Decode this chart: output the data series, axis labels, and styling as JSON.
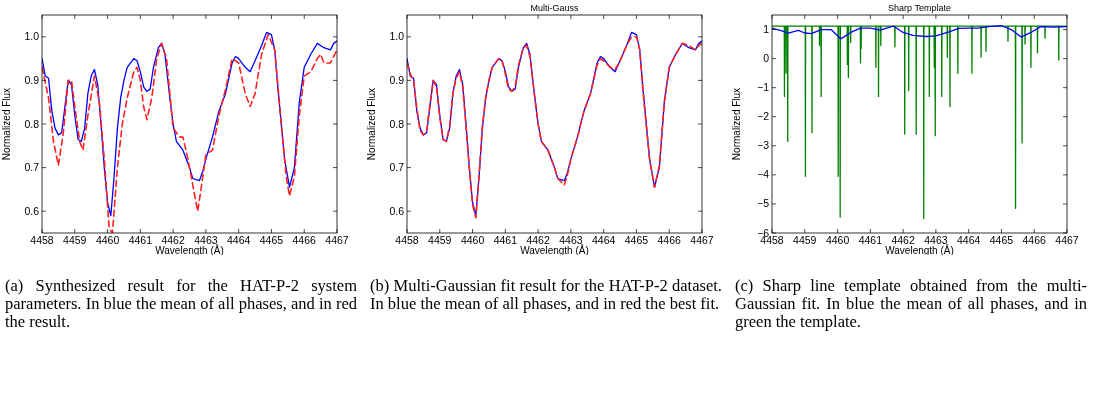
{
  "chart_data": [
    {
      "type": "line",
      "xlabel": "Wavelength (Å)",
      "ylabel": "Normalized Flux",
      "xlim": [
        4458,
        4467
      ],
      "ylim": [
        0.55,
        1.05
      ],
      "xticks": [
        4458,
        4459,
        4460,
        4461,
        4462,
        4463,
        4464,
        4465,
        4466,
        4467
      ],
      "yticks": [
        0.6,
        0.7,
        0.8,
        0.9,
        {
          "value": 1,
          "label": "1.0"
        }
      ],
      "annotations": [
        "(a) Synthesized result for the HAT-P-2 system parameters. In blue the mean of all phases, and in red the result."
      ],
      "series": [
        {
          "color": "#0000ff",
          "line_style": "solid",
          "x": [
            4458.0,
            4458.1,
            4458.2,
            4458.3,
            4458.4,
            4458.5,
            4458.6,
            4458.7,
            4458.8,
            4458.9,
            4459.0,
            4459.1,
            4459.2,
            4459.3,
            4459.4,
            4459.5,
            4459.6,
            4459.7,
            4459.8,
            4459.9,
            4460.0,
            4460.1,
            4460.2,
            4460.3,
            4460.4,
            4460.5,
            4460.6,
            4460.8,
            4460.9,
            4461.0,
            4461.1,
            4461.2,
            4461.3,
            4461.4,
            4461.55,
            4461.65,
            4461.75,
            4461.9,
            4462.0,
            4462.1,
            4462.3,
            4462.5,
            4462.6,
            4462.8,
            4462.9,
            4463.0,
            4463.2,
            4463.4,
            4463.6,
            4463.8,
            4463.9,
            4464.0,
            4464.2,
            4464.35,
            4464.5,
            4464.7,
            4464.85,
            4465.0,
            4465.1,
            4465.2,
            4465.4,
            4465.55,
            4465.7,
            4465.85,
            4466.0,
            4466.2,
            4466.4,
            4466.6,
            4466.8,
            4466.9,
            4467.0
          ],
          "values": [
            0.95,
            0.91,
            0.905,
            0.83,
            0.79,
            0.775,
            0.78,
            0.84,
            0.9,
            0.89,
            0.82,
            0.765,
            0.76,
            0.79,
            0.87,
            0.91,
            0.925,
            0.89,
            0.8,
            0.7,
            0.62,
            0.59,
            0.68,
            0.79,
            0.86,
            0.9,
            0.93,
            0.95,
            0.945,
            0.92,
            0.885,
            0.875,
            0.88,
            0.93,
            0.975,
            0.985,
            0.96,
            0.86,
            0.8,
            0.76,
            0.74,
            0.7,
            0.675,
            0.67,
            0.69,
            0.72,
            0.77,
            0.83,
            0.87,
            0.94,
            0.955,
            0.95,
            0.93,
            0.92,
            0.945,
            0.98,
            1.01,
            1.005,
            0.97,
            0.88,
            0.72,
            0.655,
            0.7,
            0.85,
            0.93,
            0.96,
            0.985,
            0.975,
            0.97,
            0.985,
            0.99
          ]
        },
        {
          "color": "#ff2020",
          "line_style": "dashed",
          "x": [
            4458.0,
            4458.2,
            4458.35,
            4458.5,
            4458.65,
            4458.8,
            4458.9,
            4459.0,
            4459.15,
            4459.25,
            4459.4,
            4459.6,
            4459.75,
            4459.9,
            4460.05,
            4460.15,
            4460.3,
            4460.45,
            4460.6,
            4460.8,
            4460.9,
            4461.0,
            4461.1,
            4461.2,
            4461.35,
            4461.5,
            4461.65,
            4461.8,
            4462.0,
            4462.2,
            4462.3,
            4462.45,
            4462.65,
            4462.75,
            4462.85,
            4463.0,
            4463.2,
            4463.4,
            4463.6,
            4463.8,
            4464.0,
            4464.2,
            4464.35,
            4464.5,
            4464.7,
            4464.9,
            4465.1,
            4465.3,
            4465.45,
            4465.55,
            4465.7,
            4465.85,
            4466.0,
            4466.2,
            4466.4,
            4466.5,
            4466.6,
            4466.8,
            4467.0
          ],
          "values": [
            0.93,
            0.86,
            0.76,
            0.705,
            0.78,
            0.9,
            0.9,
            0.84,
            0.76,
            0.74,
            0.82,
            0.91,
            0.85,
            0.72,
            0.56,
            0.55,
            0.7,
            0.8,
            0.86,
            0.92,
            0.93,
            0.9,
            0.84,
            0.81,
            0.86,
            0.95,
            0.985,
            0.95,
            0.79,
            0.77,
            0.77,
            0.72,
            0.64,
            0.6,
            0.65,
            0.73,
            0.74,
            0.82,
            0.88,
            0.95,
            0.94,
            0.87,
            0.84,
            0.87,
            0.96,
            1.005,
            0.97,
            0.8,
            0.68,
            0.635,
            0.68,
            0.82,
            0.91,
            0.92,
            0.95,
            0.96,
            0.94,
            0.94,
            0.97
          ]
        }
      ]
    },
    {
      "type": "line",
      "title": "Multi-Gauss",
      "xlabel": "Wavelength (Å)",
      "ylabel": "Normalized Flux",
      "xlim": [
        4458,
        4467
      ],
      "ylim": [
        0.55,
        1.05
      ],
      "xticks": [
        4458,
        4459,
        4460,
        4461,
        4462,
        4463,
        4464,
        4465,
        4466,
        4467
      ],
      "yticks": [
        0.6,
        0.7,
        0.8,
        0.9,
        {
          "value": 1,
          "label": "1.0"
        }
      ],
      "annotations": [
        "(b) Multi-Gaussian fit result for the HAT-P-2 dataset. In blue the mean of all phases, and in red the best fit."
      ],
      "series": [
        {
          "color": "#0000ff",
          "line_style": "solid",
          "x": [
            4458.0,
            4458.1,
            4458.2,
            4458.3,
            4458.4,
            4458.5,
            4458.6,
            4458.7,
            4458.8,
            4458.9,
            4459.0,
            4459.1,
            4459.2,
            4459.3,
            4459.4,
            4459.5,
            4459.6,
            4459.7,
            4459.8,
            4459.9,
            4460.0,
            4460.1,
            4460.2,
            4460.3,
            4460.4,
            4460.5,
            4460.6,
            4460.8,
            4460.9,
            4461.0,
            4461.1,
            4461.2,
            4461.3,
            4461.4,
            4461.55,
            4461.65,
            4461.75,
            4461.9,
            4462.0,
            4462.1,
            4462.3,
            4462.5,
            4462.6,
            4462.8,
            4462.9,
            4463.0,
            4463.2,
            4463.4,
            4463.6,
            4463.8,
            4463.9,
            4464.0,
            4464.2,
            4464.35,
            4464.5,
            4464.7,
            4464.85,
            4465.0,
            4465.1,
            4465.2,
            4465.4,
            4465.55,
            4465.7,
            4465.85,
            4466.0,
            4466.2,
            4466.4,
            4466.6,
            4466.8,
            4466.9,
            4467.0
          ],
          "values": [
            0.95,
            0.91,
            0.905,
            0.83,
            0.79,
            0.775,
            0.78,
            0.84,
            0.9,
            0.89,
            0.82,
            0.765,
            0.76,
            0.79,
            0.87,
            0.91,
            0.925,
            0.89,
            0.8,
            0.7,
            0.62,
            0.59,
            0.68,
            0.79,
            0.86,
            0.9,
            0.93,
            0.95,
            0.945,
            0.92,
            0.885,
            0.875,
            0.88,
            0.93,
            0.975,
            0.985,
            0.96,
            0.86,
            0.8,
            0.76,
            0.74,
            0.7,
            0.675,
            0.67,
            0.69,
            0.72,
            0.77,
            0.83,
            0.87,
            0.94,
            0.955,
            0.95,
            0.93,
            0.92,
            0.945,
            0.98,
            1.01,
            1.005,
            0.97,
            0.88,
            0.72,
            0.655,
            0.7,
            0.85,
            0.93,
            0.96,
            0.985,
            0.975,
            0.97,
            0.985,
            0.99
          ]
        },
        {
          "color": "#ff2020",
          "line_style": "dashed",
          "x": [
            4458.0,
            4458.1,
            4458.2,
            4458.3,
            4458.4,
            4458.5,
            4458.6,
            4458.7,
            4458.8,
            4458.9,
            4459.0,
            4459.1,
            4459.2,
            4459.3,
            4459.4,
            4459.5,
            4459.6,
            4459.7,
            4459.8,
            4459.9,
            4460.0,
            4460.1,
            4460.2,
            4460.3,
            4460.4,
            4460.5,
            4460.6,
            4460.8,
            4460.9,
            4461.0,
            4461.1,
            4461.2,
            4461.3,
            4461.4,
            4461.55,
            4461.65,
            4461.75,
            4461.9,
            4462.0,
            4462.1,
            4462.3,
            4462.5,
            4462.6,
            4462.8,
            4462.9,
            4463.0,
            4463.2,
            4463.4,
            4463.6,
            4463.8,
            4463.9,
            4464.0,
            4464.2,
            4464.35,
            4464.5,
            4464.7,
            4464.85,
            4465.0,
            4465.1,
            4465.2,
            4465.4,
            4465.55,
            4465.7,
            4465.85,
            4466.0,
            4466.2,
            4466.4,
            4466.6,
            4466.8,
            4466.9,
            4467.0
          ],
          "values": [
            0.94,
            0.915,
            0.9,
            0.835,
            0.785,
            0.775,
            0.785,
            0.845,
            0.9,
            0.885,
            0.815,
            0.765,
            0.76,
            0.795,
            0.87,
            0.905,
            0.92,
            0.885,
            0.795,
            0.7,
            0.615,
            0.585,
            0.685,
            0.795,
            0.86,
            0.9,
            0.93,
            0.95,
            0.945,
            0.915,
            0.88,
            0.875,
            0.885,
            0.935,
            0.975,
            0.98,
            0.955,
            0.86,
            0.8,
            0.76,
            0.74,
            0.7,
            0.675,
            0.66,
            0.685,
            0.72,
            0.77,
            0.83,
            0.87,
            0.935,
            0.95,
            0.945,
            0.93,
            0.925,
            0.945,
            0.98,
            1.0,
            1.0,
            0.97,
            0.875,
            0.72,
            0.655,
            0.705,
            0.85,
            0.93,
            0.96,
            0.985,
            0.98,
            0.97,
            0.98,
            0.985
          ]
        }
      ]
    },
    {
      "type": "line",
      "title": "Sharp Template",
      "xlabel": "Wavelength (Å)",
      "ylabel": "Normalized Flux",
      "xlim": [
        4458,
        4467
      ],
      "ylim": [
        -6,
        1.5
      ],
      "xticks": [
        4458,
        4459,
        4460,
        4461,
        4462,
        4463,
        4464,
        4465,
        4466,
        4467
      ],
      "yticks": [
        {
          "value": -6,
          "label": "−6"
        },
        {
          "value": -5,
          "label": "−5"
        },
        {
          "value": -4,
          "label": "−4"
        },
        {
          "value": -3,
          "label": "−3"
        },
        {
          "value": -2,
          "label": "−2"
        },
        {
          "value": -1,
          "label": "−1"
        },
        0,
        1
      ],
      "annotations": [
        "(c) Sharp line template obtained from the multi-Gaussian fit. In blue the mean of all phases, and in green the template."
      ],
      "series": [
        {
          "color": "#008000",
          "line_style": "solid",
          "x": [
            4458.0,
            4458.375,
            4458.38,
            4458.385,
            4458.425,
            4458.43,
            4458.435,
            4458.475,
            4458.48,
            4458.485,
            4459.015,
            4459.02,
            4459.025,
            4459.215,
            4459.22,
            4459.225,
            4459.445,
            4459.45,
            4459.455,
            4459.495,
            4459.5,
            4459.505,
            4460.015,
            4460.02,
            4460.025,
            4460.075,
            4460.08,
            4460.085,
            4460.295,
            4460.3,
            4460.305,
            4460.325,
            4460.33,
            4460.335,
            4460.395,
            4460.4,
            4460.405,
            4460.695,
            4460.7,
            4460.705,
            4460.715,
            4460.72,
            4460.725,
            4461.165,
            4461.17,
            4461.175,
            4461.245,
            4461.25,
            4461.255,
            4461.315,
            4461.32,
            4461.325,
            4461.745,
            4461.75,
            4461.755,
            4462.045,
            4462.05,
            4462.055,
            4462.165,
            4462.17,
            4462.175,
            4462.395,
            4462.4,
            4462.405,
            4462.625,
            4462.63,
            4462.635,
            4462.795,
            4462.8,
            4462.805,
            4462.945,
            4462.95,
            4462.955,
            4462.975,
            4462.98,
            4462.985,
            4463.175,
            4463.18,
            4463.185,
            4463.345,
            4463.35,
            4463.355,
            4463.425,
            4463.43,
            4463.435,
            4463.665,
            4463.67,
            4463.675,
            4464.095,
            4464.1,
            4464.105,
            4464.375,
            4464.38,
            4464.385,
            4464.525,
            4464.53,
            4464.535,
            4465.195,
            4465.2,
            4465.205,
            4465.425,
            4465.43,
            4465.435,
            4465.625,
            4465.63,
            4465.635,
            4465.715,
            4465.72,
            4465.725,
            4465.895,
            4465.9,
            4465.905,
            4466.095,
            4466.1,
            4466.105,
            4466.325,
            4466.33,
            4466.335,
            4466.745,
            4466.75,
            4466.755,
            4467.0
          ],
          "values": [
            1.12,
            1.12,
            -1.3,
            1.12,
            1.12,
            -0.5,
            1.12,
            1.12,
            -2.85,
            1.12,
            1.12,
            -4.05,
            1.12,
            1.12,
            -2.55,
            1.12,
            1.12,
            0.45,
            1.12,
            1.12,
            -1.3,
            1.12,
            1.12,
            -4.05,
            1.12,
            1.12,
            -5.45,
            1.12,
            1.12,
            -0.2,
            1.12,
            1.12,
            -0.65,
            1.12,
            1.12,
            0.55,
            1.12,
            1.12,
            -0.15,
            1.12,
            1.12,
            0.35,
            1.12,
            1.12,
            -0.3,
            1.12,
            1.12,
            -1.3,
            1.12,
            1.12,
            0.45,
            1.12,
            1.12,
            0.4,
            1.12,
            1.12,
            -2.6,
            1.12,
            1.12,
            -1.1,
            1.12,
            1.12,
            -2.6,
            1.12,
            1.12,
            -5.5,
            1.12,
            1.12,
            -1.3,
            1.12,
            1.12,
            -0.3,
            1.12,
            1.12,
            -2.65,
            1.12,
            1.12,
            -1.3,
            1.12,
            1.12,
            0.05,
            1.12,
            1.12,
            -1.65,
            1.12,
            1.12,
            -0.5,
            1.12,
            1.12,
            -0.5,
            1.12,
            1.12,
            0.05,
            1.12,
            1.12,
            0.25,
            1.12,
            1.12,
            0.6,
            1.12,
            1.12,
            -5.15,
            1.12,
            1.12,
            -2.9,
            1.12,
            1.12,
            0.5,
            1.12,
            1.12,
            -0.3,
            1.12,
            1.12,
            0.2,
            1.12,
            1.12,
            0.7,
            1.12,
            1.12,
            -0.05,
            1.12,
            1.12
          ]
        },
        {
          "color": "#0000ff",
          "line_style": "solid",
          "x": [
            4458.0,
            4458.3,
            4458.5,
            4458.8,
            4459.0,
            4459.2,
            4459.5,
            4459.8,
            4460.1,
            4460.4,
            4460.7,
            4461.0,
            4461.3,
            4461.7,
            4462.0,
            4462.3,
            4462.7,
            4463.0,
            4463.4,
            4463.7,
            4464.0,
            4464.3,
            4464.6,
            4465.0,
            4465.3,
            4465.6,
            4465.9,
            4466.2,
            4466.6,
            4467.0
          ],
          "values": [
            1.05,
            0.95,
            0.88,
            0.97,
            0.88,
            0.86,
            1.0,
            1.0,
            0.68,
            0.9,
            1.05,
            1.05,
            0.98,
            1.12,
            0.9,
            0.8,
            0.76,
            0.78,
            0.92,
            1.04,
            1.05,
            1.05,
            1.1,
            1.13,
            1.0,
            0.74,
            0.9,
            1.1,
            1.08,
            1.1
          ]
        }
      ]
    }
  ]
}
